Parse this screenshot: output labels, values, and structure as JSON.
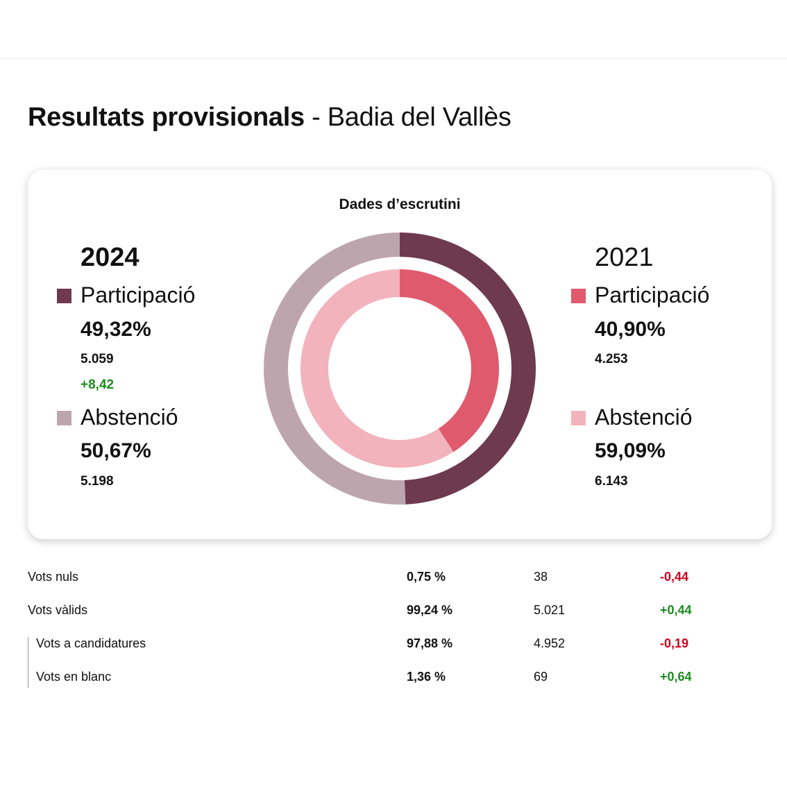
{
  "title": {
    "bold": "Resultats provisionals",
    "rest": " - Badia del Vallès"
  },
  "card": {
    "title": "Dades d’escrutini",
    "left": {
      "year": "2024",
      "participation": {
        "label": "Participació",
        "pct": "49,32%",
        "count": "5.059",
        "diff": "+8,42"
      },
      "abstention": {
        "label": "Abstenció",
        "pct": "50,67%",
        "count": "5.198"
      }
    },
    "right": {
      "year": "2021",
      "participation": {
        "label": "Participació",
        "pct": "40,90%",
        "count": "4.253"
      },
      "abstention": {
        "label": "Abstenció",
        "pct": "59,09%",
        "count": "6.143"
      }
    }
  },
  "colors": {
    "p2024": "#6e3a4e",
    "a2024": "#bda5ae",
    "p2021": "#e05a6d",
    "a2021": "#f2b3bd",
    "positive": "#1e8a1e",
    "negative": "#d0021b"
  },
  "chart_data": {
    "type": "pie",
    "title": "Dades d’escrutini",
    "series": [
      {
        "name": "2024",
        "categories": [
          "Participació",
          "Abstenció"
        ],
        "values": [
          49.32,
          50.67
        ]
      },
      {
        "name": "2021",
        "categories": [
          "Participació",
          "Abstenció"
        ],
        "values": [
          40.9,
          59.09
        ]
      }
    ]
  },
  "table": {
    "rows": [
      {
        "label": "Vots nuls",
        "pct": "0,75 %",
        "count": "38",
        "diff": "-0,44",
        "sign": "negative"
      },
      {
        "label": "Vots vàlids",
        "pct": "99,24 %",
        "count": "5.021",
        "diff": "+0,44",
        "sign": "positive"
      },
      {
        "label": "Vots a candidatures",
        "pct": "97,88 %",
        "count": "4.952",
        "diff": "-0,19",
        "sign": "negative"
      },
      {
        "label": "Vots en blanc",
        "pct": "1,36 %",
        "count": "69",
        "diff": "+0,64",
        "sign": "positive"
      }
    ]
  }
}
